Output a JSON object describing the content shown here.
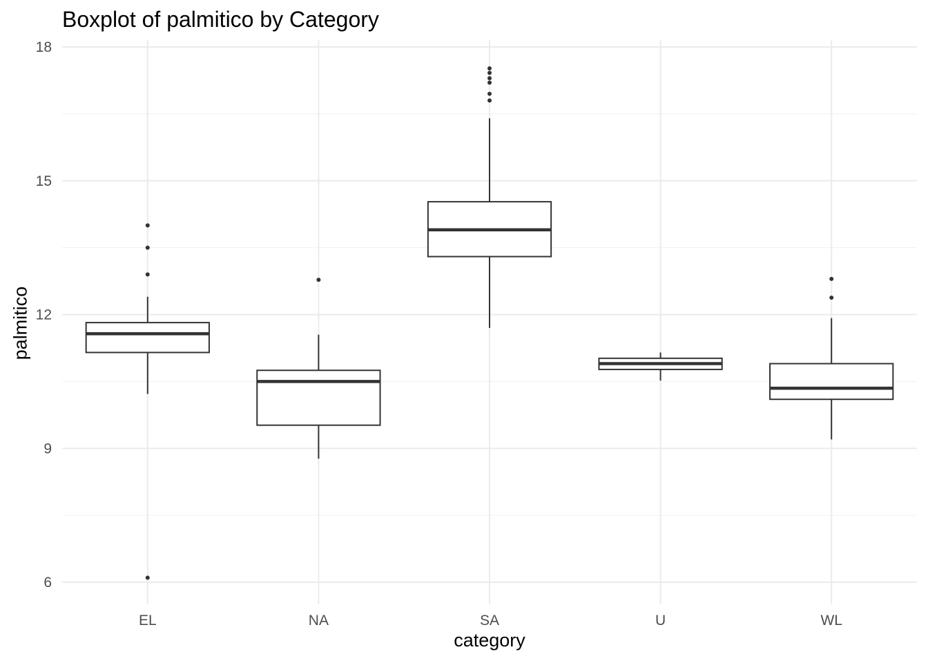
{
  "chart_data": {
    "type": "boxplot",
    "title": "Boxplot of palmitico by Category",
    "xlabel": "category",
    "ylabel": "palmitico",
    "ylim": [
      5.6,
      18.1
    ],
    "yticks": [
      6,
      9,
      12,
      15,
      18
    ],
    "grid": true,
    "categories": [
      "EL",
      "NA",
      "SA",
      "U",
      "WL"
    ],
    "boxes": [
      {
        "category": "EL",
        "whisker_low": 10.22,
        "q1": 11.15,
        "median": 11.57,
        "q3": 11.82,
        "whisker_high": 12.4,
        "outliers": [
          6.1,
          12.9,
          13.5,
          14.0
        ]
      },
      {
        "category": "NA",
        "whisker_low": 8.77,
        "q1": 9.52,
        "median": 10.5,
        "q3": 10.75,
        "whisker_high": 11.55,
        "outliers": [
          12.78
        ]
      },
      {
        "category": "SA",
        "whisker_low": 11.7,
        "q1": 13.3,
        "median": 13.9,
        "q3": 14.53,
        "whisker_high": 16.4,
        "outliers": [
          16.8,
          16.95,
          17.2,
          17.3,
          17.42,
          17.52
        ]
      },
      {
        "category": "U",
        "whisker_low": 10.52,
        "q1": 10.77,
        "median": 10.9,
        "q3": 11.02,
        "whisker_high": 11.15,
        "outliers": []
      },
      {
        "category": "WL",
        "whisker_low": 9.2,
        "q1": 10.1,
        "median": 10.35,
        "q3": 10.9,
        "whisker_high": 11.92,
        "outliers": [
          12.38,
          12.8
        ]
      }
    ]
  }
}
